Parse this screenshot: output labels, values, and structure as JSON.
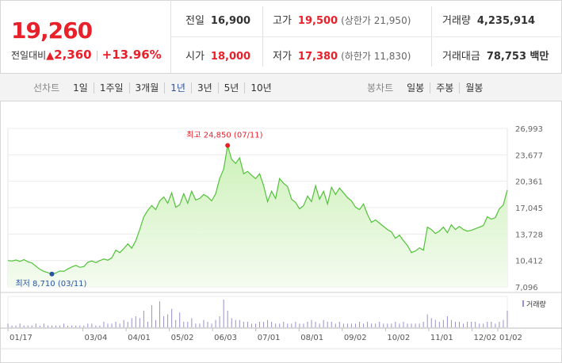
{
  "quote": {
    "price": "19,260",
    "change_label": "전일대비",
    "change_arrow": "▲",
    "change_value": "2,360",
    "change_pct": "+13.96%"
  },
  "info": {
    "prev_label": "전일",
    "prev_value": "16,900",
    "high_label": "고가",
    "high_value": "19,500",
    "upper_limit": "(상한가 21,950)",
    "volume_label": "거래량",
    "volume_value": "4,235,914",
    "open_label": "시가",
    "open_value": "18,000",
    "low_label": "저가",
    "low_value": "17,380",
    "lower_limit": "(하한가 11,830)",
    "amount_label": "거래대금",
    "amount_value": "78,753 백만"
  },
  "tabs": {
    "line_label": "선차트",
    "line_tabs": [
      "1일",
      "1주일",
      "3개월",
      "1년",
      "3년",
      "5년",
      "10년"
    ],
    "active_line_tab": "1년",
    "candle_label": "봉차트",
    "candle_tabs": [
      "일봉",
      "주봉",
      "월봉"
    ]
  },
  "chart_data": {
    "type": "area",
    "y_ticks": [
      "26,993",
      "23,677",
      "20,361",
      "17,045",
      "13,728",
      "10,412",
      "7,096"
    ],
    "ylim": [
      7096,
      26993
    ],
    "x_ticks": [
      "01/17",
      "03/04",
      "04/01",
      "05/02",
      "06/03",
      "07/01",
      "08/01",
      "09/02",
      "10/02",
      "11/01",
      "12/02",
      "01/02"
    ],
    "high_annotation": "최고 24,850 (07/11)",
    "low_annotation": "최저 8,710 (03/11)",
    "high_value": 24850,
    "low_value": 8710,
    "series": [
      {
        "values": [
          10412,
          10350,
          10480,
          10300,
          10520,
          10250,
          10100,
          9700,
          9300,
          9050,
          8900,
          8710,
          8850,
          9100,
          9050,
          9350,
          9600,
          9800,
          9550,
          9650,
          10200,
          10350,
          10150,
          10400,
          10600,
          10450,
          10750,
          11700,
          11400,
          11900,
          12500,
          11950,
          12900,
          14300,
          15900,
          16700,
          17300,
          16800,
          17900,
          18400,
          17600,
          18900,
          17100,
          17400,
          18800,
          17600,
          19100,
          18000,
          18200,
          18700,
          18400,
          17900,
          18800,
          20700,
          21900,
          24850,
          23100,
          22600,
          23300,
          21300,
          21600,
          21100,
          20700,
          21300,
          19800,
          17800,
          19100,
          18200,
          20700,
          20100,
          19700,
          18100,
          17700,
          16900,
          17300,
          18500,
          17800,
          19800,
          18100,
          19100,
          17500,
          19600,
          18700,
          19500,
          18900,
          18300,
          17900,
          17100,
          16800,
          17500,
          16200,
          15200,
          15500,
          15100,
          14700,
          14300,
          14000,
          13200,
          13600,
          12900,
          12300,
          11400,
          11600,
          12000,
          11700,
          14600,
          14300,
          13800,
          14100,
          14600,
          13900,
          14900,
          14300,
          14700,
          14300,
          14100,
          14200,
          14400,
          14600,
          14800,
          15900,
          15600,
          15800,
          16900,
          17400,
          19260
        ]
      }
    ],
    "volume": [
      2,
      1,
      1,
      2,
      1,
      1,
      1,
      2,
      1,
      2,
      1,
      1,
      1,
      1,
      2,
      1,
      1,
      1,
      1,
      1,
      2,
      2,
      1,
      1,
      3,
      2,
      2,
      3,
      2,
      4,
      3,
      5,
      6,
      5,
      9,
      3,
      12,
      4,
      14,
      6,
      7,
      10,
      4,
      8,
      3,
      3,
      5,
      2,
      2,
      4,
      3,
      2,
      4,
      6,
      15,
      9,
      5,
      4,
      4,
      3,
      3,
      2,
      2,
      3,
      3,
      4,
      3,
      2,
      2,
      3,
      2,
      2,
      3,
      2,
      2,
      3,
      4,
      3,
      2,
      4,
      3,
      3,
      2,
      3,
      2,
      2,
      2,
      2,
      3,
      2,
      3,
      2,
      2,
      3,
      2,
      2,
      2,
      3,
      2,
      3,
      2,
      2,
      2,
      2,
      3,
      7,
      5,
      4,
      3,
      4,
      6,
      4,
      3,
      3,
      2,
      3,
      3,
      3,
      2,
      2,
      3,
      3,
      2,
      3,
      4,
      9
    ],
    "volume_legend": "거래량",
    "line_color": "#52c23a",
    "fill_color": "#c9f0b4"
  }
}
